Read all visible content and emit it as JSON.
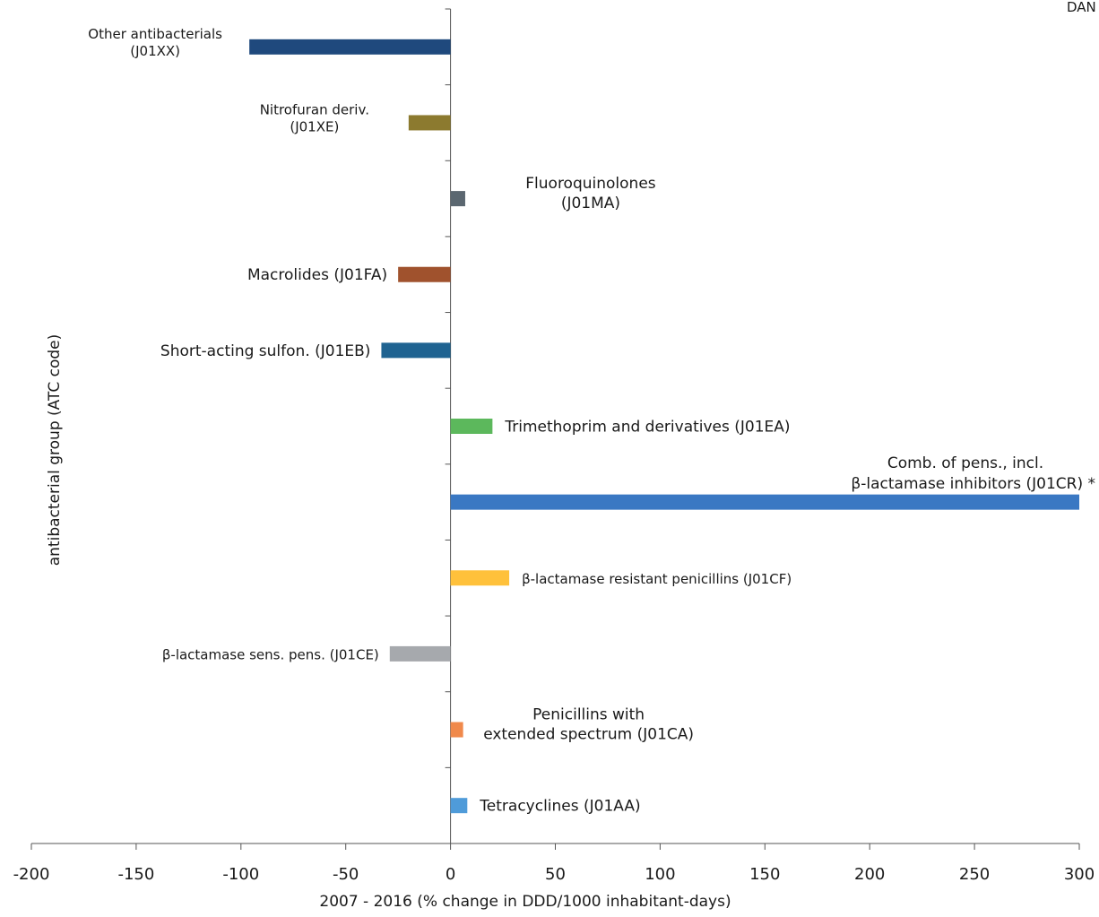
{
  "corner_label": "DAN",
  "chart_data": {
    "type": "bar",
    "orientation": "horizontal",
    "xlabel": "2007 - 2016  (% change in DDD/1000 inhabitant-days)",
    "ylabel": "antibacterial group (ATC code)",
    "xlim": [
      -200,
      300
    ],
    "xticks": [
      -200,
      -150,
      -100,
      -50,
      0,
      50,
      100,
      150,
      200,
      250,
      300
    ],
    "grid": false,
    "categories": [
      {
        "label": [
          "Other antibacterials",
          "(J01XX)"
        ],
        "value": -96,
        "color": "#1f497d",
        "side": "left",
        "size": "small"
      },
      {
        "label": [
          "Nitrofuran deriv.",
          "(J01XE)"
        ],
        "value": -20,
        "color": "#8c7a2f",
        "side": "left",
        "size": "small"
      },
      {
        "label": [
          "Fluoroquinolones",
          "(J01MA)"
        ],
        "value": 7,
        "color": "#5b6770",
        "side": "right",
        "size": "normal"
      },
      {
        "label": [
          "Macrolides (J01FA)"
        ],
        "value": -25,
        "color": "#a0522d",
        "side": "left",
        "size": "normal"
      },
      {
        "label": [
          "Short-acting sulfon. (J01EB)"
        ],
        "value": -33,
        "color": "#1f6391",
        "side": "left",
        "size": "normal"
      },
      {
        "label": [
          "Trimethoprim and derivatives (J01EA)"
        ],
        "value": 20,
        "color": "#5cb85c",
        "side": "right",
        "size": "normal"
      },
      {
        "label": [
          "Comb. of pens., incl.",
          "β-lactamase inhibitors (J01CR) *"
        ],
        "value": 300,
        "color": "#3a78c3",
        "side": "right",
        "size": "normal"
      },
      {
        "label": [
          "β-lactamase resistant penicillins (J01CF)"
        ],
        "value": 28,
        "color": "#ffc13b",
        "side": "right",
        "size": "small"
      },
      {
        "label": [
          "β-lactamase sens. pens. (J01CE)"
        ],
        "value": -29,
        "color": "#a6a9ad",
        "side": "left",
        "size": "small"
      },
      {
        "label": [
          "Penicillins with",
          "extended spectrum (J01CA)"
        ],
        "value": 6,
        "color": "#f0894b",
        "side": "right",
        "size": "normal"
      },
      {
        "label": [
          "Tetracyclines (J01AA)"
        ],
        "value": 8,
        "color": "#4f9bd9",
        "side": "right",
        "size": "normal"
      }
    ]
  }
}
